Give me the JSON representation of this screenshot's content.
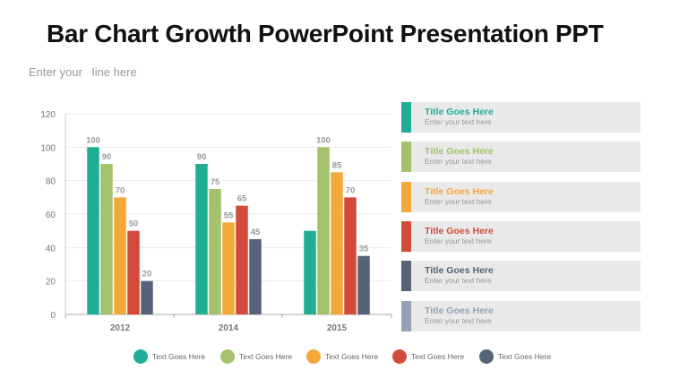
{
  "header": {
    "title": "Bar Chart Growth PowerPoint Presentation PPT",
    "subtitle": "Enter your   line here"
  },
  "colors": [
    "#1fae94",
    "#a3c26b",
    "#f3a93a",
    "#d24b3a",
    "#556478",
    "#95a3b6"
  ],
  "chart_data": {
    "type": "bar",
    "categories": [
      "2012",
      "2014",
      "2015"
    ],
    "ylim": [
      0,
      120
    ],
    "yticks": [
      "0",
      "20",
      "40",
      "60",
      "80",
      "100",
      "120"
    ],
    "grid": true,
    "legend_position": "bottom",
    "series": [
      {
        "name": "Text Goes Here",
        "values": [
          100,
          90,
          50
        ],
        "labels": [
          "100",
          "90",
          ""
        ]
      },
      {
        "name": "Text Goes Here",
        "values": [
          90,
          75,
          100
        ],
        "labels": [
          "90",
          "75",
          "100"
        ]
      },
      {
        "name": "Text Goes Here",
        "values": [
          70,
          55,
          85
        ],
        "labels": [
          "70",
          "55",
          "85"
        ]
      },
      {
        "name": "Text Goes Here",
        "values": [
          50,
          65,
          70
        ],
        "labels": [
          "50",
          "65",
          "70"
        ]
      },
      {
        "name": "Text Goes Here",
        "values": [
          20,
          45,
          35
        ],
        "labels": [
          "20",
          "45",
          "35"
        ]
      }
    ]
  },
  "cards": [
    {
      "title": "Title Goes Here",
      "text": "Enter your text here"
    },
    {
      "title": "Title Goes Here",
      "text": "Enter your text here"
    },
    {
      "title": "Title Goes Here",
      "text": "Enter your text here"
    },
    {
      "title": "Title Goes Here",
      "text": "Enter your text here"
    },
    {
      "title": "Title Goes Here",
      "text": "Enter your text here"
    },
    {
      "title": "Title Goes Here",
      "text": "Enter your text here"
    }
  ]
}
